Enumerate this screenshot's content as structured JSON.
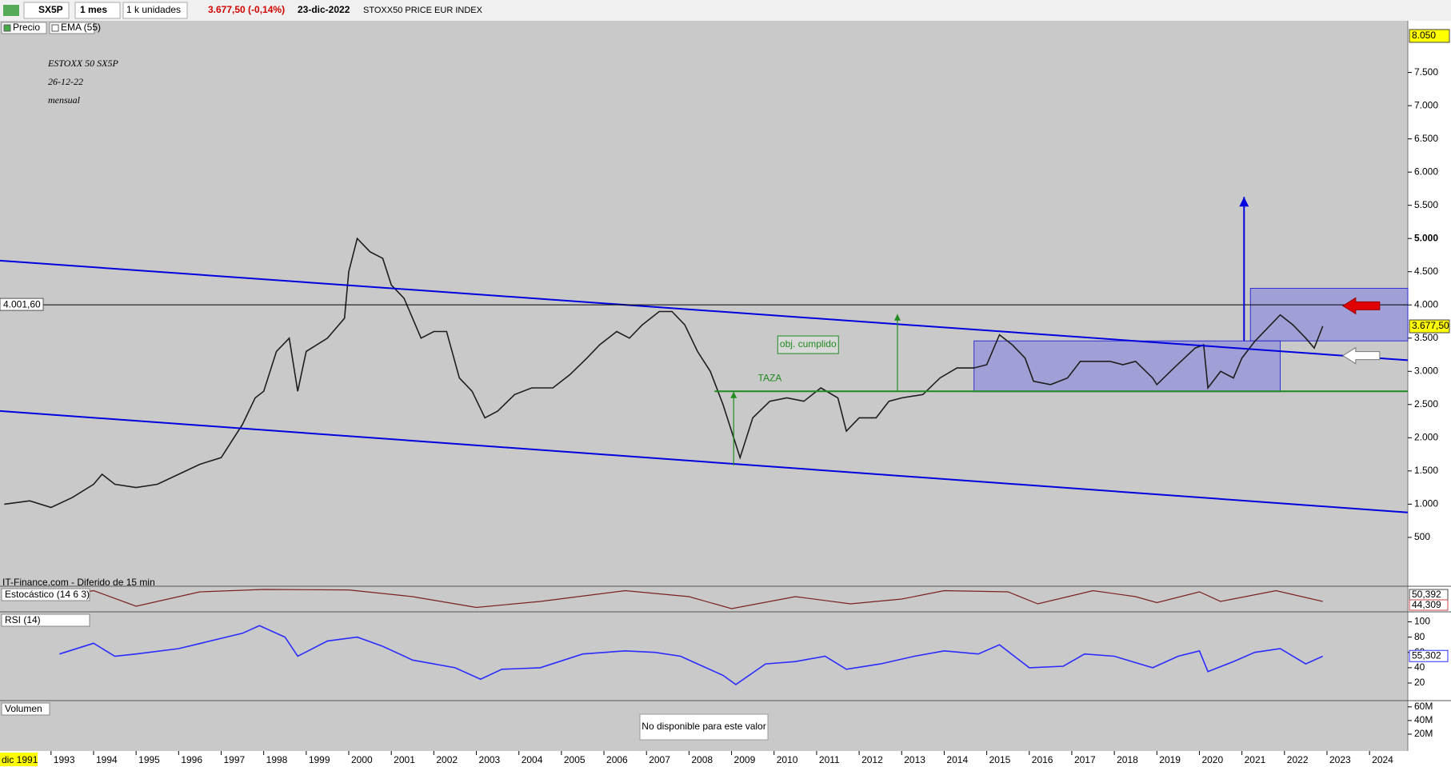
{
  "toolbar": {
    "symbol": "SX5P",
    "period": "1 mes",
    "units": "1 k unidades",
    "price": "3.677,50 (-0,14%)",
    "date": "23-dic-2022",
    "name": "STOXX50 PRICE EUR INDEX"
  },
  "chart_data": [
    {
      "type": "line",
      "title_lines": [
        "ESTOXX 50 SX5P",
        "26-12-22",
        "mensual"
      ],
      "legend": [
        "Precio",
        "EMA (55)"
      ],
      "source": "IT-Finance.com - Diferido de 15 min",
      "x": [
        1991.9,
        1992.5,
        1993.0,
        1993.5,
        1994.0,
        1994.2,
        1994.5,
        1995.0,
        1995.5,
        1996.0,
        1996.5,
        1997.0,
        1997.5,
        1997.8,
        1998.0,
        1998.3,
        1998.6,
        1998.8,
        1999.0,
        1999.5,
        1999.9,
        2000.0,
        2000.2,
        2000.5,
        2000.8,
        2001.0,
        2001.3,
        2001.7,
        2002.0,
        2002.3,
        2002.6,
        2002.9,
        2003.2,
        2003.5,
        2003.9,
        2004.3,
        2004.8,
        2005.2,
        2005.6,
        2005.9,
        2006.3,
        2006.6,
        2006.9,
        2007.3,
        2007.6,
        2007.9,
        2008.2,
        2008.5,
        2008.8,
        2009.1,
        2009.2,
        2009.5,
        2009.9,
        2010.3,
        2010.7,
        2011.1,
        2011.5,
        2011.7,
        2012.0,
        2012.4,
        2012.7,
        2013.0,
        2013.5,
        2013.9,
        2014.3,
        2014.7,
        2015.0,
        2015.3,
        2015.6,
        2015.9,
        2016.1,
        2016.5,
        2016.9,
        2017.2,
        2017.6,
        2017.9,
        2018.2,
        2018.5,
        2018.9,
        2019.0,
        2019.4,
        2019.9,
        2020.1,
        2020.2,
        2020.5,
        2020.8,
        2021.0,
        2021.3,
        2021.6,
        2021.9,
        2022.2,
        2022.5,
        2022.7,
        2022.9
      ],
      "series": [
        {
          "name": "Precio",
          "color": "#1e1e1e",
          "values": [
            1000,
            1050,
            950,
            1100,
            1300,
            1450,
            1300,
            1250,
            1300,
            1450,
            1600,
            1700,
            2200,
            2600,
            2700,
            3300,
            3500,
            2700,
            3300,
            3500,
            3800,
            4500,
            5000,
            4800,
            4700,
            4300,
            4100,
            3500,
            3600,
            3600,
            2900,
            2700,
            2300,
            2400,
            2650,
            2750,
            2750,
            2950,
            3200,
            3400,
            3600,
            3500,
            3700,
            3900,
            3900,
            3700,
            3300,
            3000,
            2500,
            1900,
            1700,
            2300,
            2550,
            2600,
            2550,
            2750,
            2600,
            2100,
            2300,
            2300,
            2550,
            2600,
            2650,
            2900,
            3050,
            3050,
            3100,
            3550,
            3400,
            3200,
            2850,
            2800,
            2900,
            3150,
            3150,
            3150,
            3100,
            3150,
            2900,
            2800,
            3050,
            3350,
            3400,
            2750,
            3000,
            2900,
            3200,
            3450,
            3650,
            3850,
            3700,
            3500,
            3350,
            3680
          ]
        }
      ],
      "xlim": [
        1991.8,
        2024.9
      ],
      "xticks": [
        1993,
        1994,
        1995,
        1996,
        1997,
        1998,
        1999,
        2000,
        2001,
        2002,
        2003,
        2004,
        2005,
        2006,
        2007,
        2008,
        2009,
        2010,
        2011,
        2012,
        2013,
        2014,
        2015,
        2016,
        2017,
        2018,
        2019,
        2020,
        2021,
        2022,
        2023,
        2024
      ],
      "x_start_label": "dic 1991",
      "ylim": [
        -236,
        8278
      ],
      "yticks": [
        500,
        {
          "value": 1000,
          "label": "1.000"
        },
        {
          "value": 1500,
          "label": "1.500"
        },
        {
          "value": 2000,
          "label": "2.000"
        },
        {
          "value": 2500,
          "label": "2.500"
        },
        {
          "value": 3000,
          "label": "3.000"
        },
        {
          "value": 3500,
          "label": "3.500"
        },
        {
          "value": 4000,
          "label": "4.000"
        },
        {
          "value": 4500,
          "label": "4.500"
        },
        {
          "value": 5000,
          "label": "5.000"
        },
        {
          "value": 5500,
          "label": "5.500"
        },
        {
          "value": 6000,
          "label": "6.000"
        },
        {
          "value": 6500,
          "label": "6.500"
        },
        {
          "value": 7000,
          "label": "7.000"
        },
        {
          "value": 7500,
          "label": "7.500"
        }
      ],
      "max_label": {
        "value": 8050,
        "label": "8.050"
      },
      "last_label": {
        "value": 3677.5,
        "label": "3.677,50"
      },
      "hlines": [
        {
          "value": 4001.6,
          "label": "4.001,60",
          "color": "#000000",
          "from": 1991.8
        },
        {
          "value": 2700,
          "color": "#1f8a1f",
          "from": 2008.6
        }
      ],
      "trendlines": [
        {
          "x": [
            1991.8,
            2024.9
          ],
          "y": [
            4667,
            3167
          ],
          "color": "#0000e0"
        },
        {
          "x": [
            1991.8,
            2024.9
          ],
          "y": [
            2403,
            875
          ],
          "color": "#0000e0"
        }
      ],
      "boxes": [
        {
          "x": [
            2014.7,
            2021.9
          ],
          "y": [
            2694,
            3458
          ]
        },
        {
          "x": [
            2021.2,
            2024.9
          ],
          "y": [
            3458,
            4250
          ]
        }
      ],
      "arrows": [
        {
          "x": 2021.05,
          "y": [
            3458,
            5625
          ],
          "color": "#0000e0"
        },
        {
          "x": 2009.05,
          "y": [
            1583,
            2694
          ],
          "color": "#1f8a1f"
        },
        {
          "x": 2012.9,
          "y": [
            2694,
            3861
          ],
          "color": "#1f8a1f"
        }
      ],
      "markers": [
        {
          "x": 2023.9,
          "y": 3986,
          "color": "#e00000"
        },
        {
          "x": 2023.9,
          "y": 3236,
          "color": "#ffffff"
        }
      ],
      "texts": [
        {
          "text": "TAZA",
          "x": 2009.9,
          "y": 2889,
          "color": "#1f8a1f"
        },
        {
          "text": "obj. cumplido",
          "x": 2010.8,
          "y": 3400,
          "color": "#1f8a1f"
        }
      ]
    },
    {
      "type": "line",
      "title": "Estocástico (14 6 3)",
      "x": [
        1993.2,
        1994,
        1995,
        1996.5,
        1998,
        2000,
        2001.5,
        2003,
        2004.5,
        2006.5,
        2008,
        2009,
        2010.5,
        2011.8,
        2013,
        2014,
        2015.5,
        2016.2,
        2017.5,
        2018.5,
        2019,
        2020,
        2020.5,
        2021.8,
        2022.9
      ],
      "values": [
        60,
        85,
        20,
        80,
        90,
        88,
        60,
        15,
        40,
        85,
        60,
        10,
        60,
        30,
        50,
        85,
        80,
        30,
        85,
        60,
        35,
        80,
        40,
        85,
        40
      ],
      "color": "#7a2020",
      "ylim": [
        0,
        100
      ],
      "last_values": [
        {
          "value": 50.392,
          "label": "50,392"
        },
        {
          "value": 44.309,
          "label": "44,309"
        }
      ]
    },
    {
      "type": "line",
      "title": "RSI (14)",
      "x": [
        1993.2,
        1994,
        1994.5,
        1995,
        1996,
        1997.5,
        1997.9,
        1998.5,
        1998.8,
        1999.5,
        2000.2,
        2000.8,
        2001.5,
        2002.5,
        2003.1,
        2003.6,
        2004.5,
        2005.5,
        2006.5,
        2007.2,
        2007.8,
        2008.2,
        2008.8,
        2009.1,
        2009.8,
        2010.5,
        2011.2,
        2011.7,
        2012.5,
        2013.3,
        2014,
        2014.8,
        2015.3,
        2016,
        2016.8,
        2017.3,
        2018,
        2018.9,
        2019.5,
        2020.0,
        2020.2,
        2020.8,
        2021.3,
        2021.9,
        2022.5,
        2022.9
      ],
      "values": [
        58,
        72,
        55,
        58,
        65,
        85,
        95,
        80,
        55,
        75,
        80,
        68,
        50,
        40,
        25,
        38,
        40,
        58,
        62,
        60,
        55,
        45,
        30,
        18,
        45,
        48,
        55,
        38,
        45,
        55,
        62,
        58,
        70,
        40,
        42,
        58,
        55,
        40,
        55,
        62,
        35,
        48,
        60,
        65,
        45,
        55
      ],
      "color": "#2b2bff",
      "ylim": [
        -3,
        112
      ],
      "yticks": [
        100,
        80,
        60,
        40,
        20
      ],
      "last_value": {
        "value": 55.302,
        "label": "55,302"
      }
    },
    {
      "type": "volume",
      "title": "Volumen",
      "note": "No disponible para este valor",
      "ylim": [
        -3500000,
        68000000
      ],
      "yticks": [
        {
          "value": 60000000,
          "label": "60M"
        },
        {
          "value": 40000000,
          "label": "40M"
        },
        {
          "value": 20000000,
          "label": "20M"
        }
      ]
    }
  ]
}
